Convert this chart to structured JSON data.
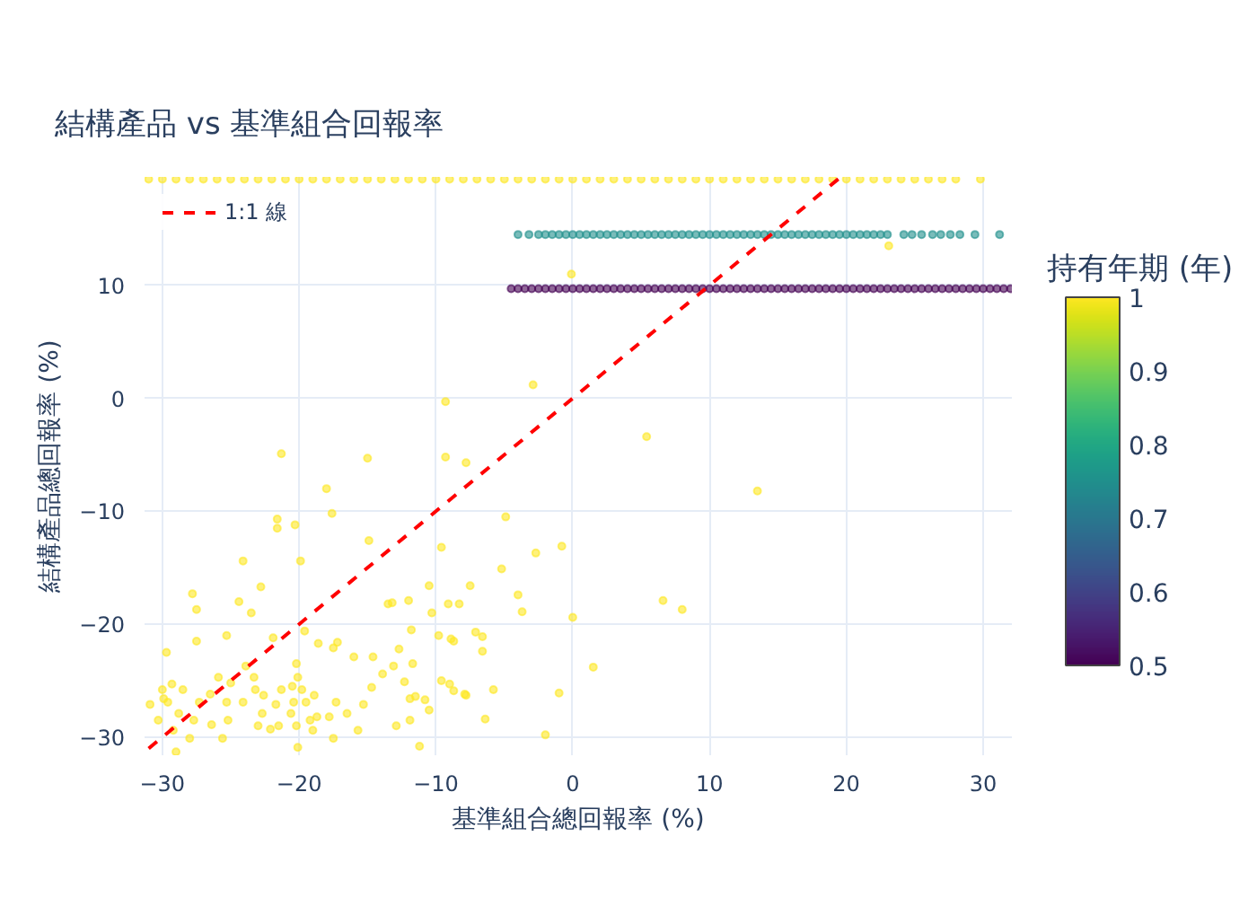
{
  "chart_data": {
    "type": "scatter",
    "title": "結構產品 vs 基準組合回報率",
    "xlabel": "基準組合總回報率 (%)",
    "ylabel": "結構產品總回報率 (%)",
    "clabel": "持有年期 (年)",
    "clim": [
      0.5,
      1
    ],
    "cticks": [
      0.5,
      0.6,
      0.7,
      0.8,
      0.9,
      1
    ],
    "xlim": [
      -31.3,
      32.1
    ],
    "ylim": [
      -31.6,
      19.6
    ],
    "xticks": [
      {
        "value": -30,
        "label": "−30"
      },
      {
        "value": -20,
        "label": "−20"
      },
      {
        "value": -10,
        "label": "−10"
      },
      0,
      10,
      20,
      30
    ],
    "yticks": [
      {
        "value": -30,
        "label": "−30"
      },
      {
        "value": -20,
        "label": "−20"
      },
      {
        "value": -10,
        "label": "−10"
      },
      0,
      10
    ],
    "grid": true,
    "legend": "top left",
    "marker": "circle",
    "series": [
      {
        "x": [
          -21.3,
          -15.0,
          -9.3,
          -9.3,
          -7.8,
          -2.9,
          -18.0,
          -17.6,
          -21.6,
          -21.6,
          -20.3,
          -14.9,
          -24.1,
          -19.9,
          -9.6,
          -4.9,
          -2.7,
          -0.8,
          -5.2,
          -10.5,
          -7.5,
          -22.8,
          -27.8,
          -27.5,
          -24.4,
          -23.5,
          -13.5,
          -13.2,
          -12.0,
          -10.3,
          -9.1,
          -8.3,
          -4.0,
          -3.7,
          0.0,
          -11.8,
          -19.6,
          -21.9,
          -25.3,
          -27.5,
          -29.7,
          -18.6,
          -17.2,
          -17.5,
          -16.0,
          -14.6,
          -13.1,
          -12.7,
          -11.7,
          -9.8,
          -8.9,
          -8.7,
          -7.1,
          -6.6,
          -6.6,
          -5.8,
          -1.0,
          -6.4,
          -2.0,
          -9.6,
          -9.0,
          -7.8,
          -8.7,
          -11.5,
          -10.8,
          -10.5,
          -12.3,
          -11.9,
          -11.9,
          -12.9,
          -11.2,
          -13.9,
          -14.7,
          -15.3,
          -15.7,
          -16.5,
          -17.3,
          -17.8,
          -17.5,
          -18.9,
          -18.7,
          -19.2,
          -19.0,
          -19.5,
          -19.8,
          -20.1,
          -20.2,
          -20.5,
          -20.4,
          -20.6,
          -20.2,
          -20.1,
          -21.3,
          -21.7,
          -21.5,
          -22.1,
          -22.6,
          -22.7,
          -23.0,
          -23.2,
          -23.3,
          -24.1,
          -23.9,
          -25.0,
          -25.3,
          -25.2,
          -25.6,
          -25.9,
          -26.5,
          -26.4,
          -27.3,
          -27.7,
          -28.0,
          -28.5,
          -28.8,
          -29.2,
          -29.6,
          -30.0,
          -30.3,
          -30.9,
          -29.3,
          -29.9,
          -29.0,
          5.4,
          13.5,
          6.6,
          8.0,
          1.5,
          -7.9,
          23.1,
          -0.1
        ],
        "values": [
          -4.9,
          -5.3,
          -0.3,
          -5.2,
          -5.7,
          1.2,
          -8.0,
          -10.2,
          -10.7,
          -11.5,
          -11.2,
          -12.6,
          -14.4,
          -14.4,
          -13.2,
          -10.5,
          -13.7,
          -13.1,
          -15.1,
          -16.6,
          -16.6,
          -16.7,
          -17.3,
          -18.7,
          -18.0,
          -19.0,
          -18.2,
          -18.1,
          -17.9,
          -19.0,
          -18.2,
          -18.2,
          -17.4,
          -18.9,
          -19.4,
          -20.5,
          -20.6,
          -21.2,
          -21.0,
          -21.5,
          -22.5,
          -21.7,
          -21.6,
          -22.1,
          -22.9,
          -22.9,
          -23.7,
          -22.2,
          -23.5,
          -21.0,
          -21.3,
          -21.5,
          -20.7,
          -21.1,
          -22.4,
          -25.8,
          -26.1,
          -28.4,
          -29.8,
          -25.0,
          -25.3,
          -26.3,
          -25.9,
          -26.4,
          -26.7,
          -27.6,
          -25.1,
          -26.6,
          -28.5,
          -29.0,
          -30.8,
          -24.4,
          -25.6,
          -27.1,
          -29.4,
          -27.9,
          -26.9,
          -28.2,
          -30.1,
          -26.3,
          -28.2,
          -28.5,
          -29.4,
          -26.9,
          -25.8,
          -24.7,
          -23.5,
          -25.5,
          -26.9,
          -27.9,
          -29.0,
          -30.9,
          -25.8,
          -27.1,
          -29.0,
          -29.3,
          -26.3,
          -27.9,
          -29.0,
          -25.8,
          -24.7,
          -26.9,
          -23.7,
          -25.2,
          -26.9,
          -28.5,
          -30.1,
          -24.7,
          -26.2,
          -28.9,
          -26.9,
          -28.5,
          -30.1,
          -25.8,
          -27.9,
          -29.4,
          -26.9,
          -25.8,
          -28.5,
          -27.1,
          -25.3,
          -26.6,
          -31.3,
          -3.4,
          -8.2,
          -17.9,
          -18.7,
          -23.8,
          -26.2,
          13.5,
          11.0
        ],
        "cvalues": [
          1,
          1,
          1,
          1,
          1,
          1,
          1,
          1,
          1,
          1,
          1,
          1,
          1,
          1,
          1,
          1,
          1,
          1,
          1,
          1,
          1,
          1,
          1,
          1,
          1,
          1,
          1,
          1,
          1,
          1,
          1,
          1,
          1,
          1,
          1,
          1,
          1,
          1,
          1,
          1,
          1,
          1,
          1,
          1,
          1,
          1,
          1,
          1,
          1,
          1,
          1,
          1,
          1,
          1,
          1,
          1,
          1,
          1,
          1,
          1,
          1,
          1,
          1,
          1,
          1,
          1,
          1,
          1,
          1,
          1,
          1,
          1,
          1,
          1,
          1,
          1,
          1,
          1,
          1,
          1,
          1,
          1,
          1,
          1,
          1,
          1,
          1,
          1,
          1,
          1,
          1,
          1,
          1,
          1,
          1,
          1,
          1,
          1,
          1,
          1,
          1,
          1,
          1,
          1,
          1,
          1,
          1,
          1,
          1,
          1,
          1,
          1,
          1,
          1,
          1,
          1,
          1,
          1,
          1,
          1,
          1,
          1,
          1,
          1,
          1,
          1,
          1,
          1,
          1,
          1,
          1
        ]
      },
      {
        "x": [
          -4.5,
          -4,
          -3.5,
          -3,
          -2.5,
          -2,
          -1.5,
          -1,
          -0.5,
          0,
          0.5,
          1,
          1.5,
          2,
          2.5,
          3,
          3.5,
          4,
          4.5,
          5,
          5.5,
          6,
          6.5,
          7,
          7.5,
          8,
          8.5,
          9,
          9.5,
          10,
          10.5,
          11,
          11.5,
          12,
          12.5,
          13,
          13.5,
          14,
          14.5,
          15,
          15.5,
          16,
          16.5,
          17,
          17.5,
          18,
          18.5,
          19,
          19.5,
          20,
          20.5,
          21,
          21.5,
          22,
          22.5,
          23,
          23.5,
          24,
          24.5,
          25,
          25.5,
          26,
          26.5,
          27,
          27.5,
          28,
          28.5,
          29,
          29.5,
          30,
          30.5,
          31,
          31.5,
          32
        ],
        "values": [
          9.7,
          9.7,
          9.7,
          9.7,
          9.7,
          9.7,
          9.7,
          9.7,
          9.7,
          9.7,
          9.7,
          9.7,
          9.7,
          9.7,
          9.7,
          9.7,
          9.7,
          9.7,
          9.7,
          9.7,
          9.7,
          9.7,
          9.7,
          9.7,
          9.7,
          9.7,
          9.7,
          9.7,
          9.7,
          9.7,
          9.7,
          9.7,
          9.7,
          9.7,
          9.7,
          9.7,
          9.7,
          9.7,
          9.7,
          9.7,
          9.7,
          9.7,
          9.7,
          9.7,
          9.7,
          9.7,
          9.7,
          9.7,
          9.7,
          9.7,
          9.7,
          9.7,
          9.7,
          9.7,
          9.7,
          9.7,
          9.7,
          9.7,
          9.7,
          9.7,
          9.7,
          9.7,
          9.7,
          9.7,
          9.7,
          9.7,
          9.7,
          9.7,
          9.7,
          9.7,
          9.7,
          9.7,
          9.7,
          9.7
        ],
        "cvalues": [
          0.5,
          0.5,
          0.5,
          0.5,
          0.5,
          0.5,
          0.5,
          0.5,
          0.5,
          0.5,
          0.5,
          0.5,
          0.5,
          0.5,
          0.5,
          0.5,
          0.5,
          0.5,
          0.5,
          0.5,
          0.5,
          0.5,
          0.5,
          0.5,
          0.5,
          0.5,
          0.5,
          0.5,
          0.5,
          0.5,
          0.5,
          0.5,
          0.5,
          0.5,
          0.5,
          0.5,
          0.5,
          0.5,
          0.5,
          0.5,
          0.5,
          0.5,
          0.5,
          0.5,
          0.5,
          0.5,
          0.5,
          0.5,
          0.5,
          0.5,
          0.5,
          0.5,
          0.5,
          0.5,
          0.5,
          0.5,
          0.5,
          0.5,
          0.5,
          0.5,
          0.5,
          0.5,
          0.5,
          0.5,
          0.5,
          0.5,
          0.5,
          0.5,
          0.5,
          0.5,
          0.5,
          0.5,
          0.5,
          0.5
        ]
      },
      {
        "x": [
          -4,
          -3.2,
          -2.5,
          -2,
          -1.5,
          -1,
          -0.5,
          0,
          0.5,
          1,
          1.5,
          2,
          2.5,
          3,
          3.5,
          4,
          4.5,
          5,
          5.5,
          6,
          6.5,
          7,
          7.5,
          8,
          8.5,
          9,
          9.5,
          10,
          10.5,
          11,
          11.5,
          12,
          12.5,
          13,
          13.5,
          14,
          14.5,
          15,
          15.5,
          16,
          16.5,
          17,
          17.5,
          18,
          18.5,
          19,
          19.5,
          20,
          20.5,
          21,
          21.5,
          22,
          22.5,
          23,
          24.2,
          24.8,
          25.5,
          26.3,
          26.9,
          27.6,
          28.3,
          29.4,
          31.2
        ],
        "values": [
          14.5,
          14.5,
          14.5,
          14.5,
          14.5,
          14.5,
          14.5,
          14.5,
          14.5,
          14.5,
          14.5,
          14.5,
          14.5,
          14.5,
          14.5,
          14.5,
          14.5,
          14.5,
          14.5,
          14.5,
          14.5,
          14.5,
          14.5,
          14.5,
          14.5,
          14.5,
          14.5,
          14.5,
          14.5,
          14.5,
          14.5,
          14.5,
          14.5,
          14.5,
          14.5,
          14.5,
          14.5,
          14.5,
          14.5,
          14.5,
          14.5,
          14.5,
          14.5,
          14.5,
          14.5,
          14.5,
          14.5,
          14.5,
          14.5,
          14.5,
          14.5,
          14.5,
          14.5,
          14.5,
          14.5,
          14.5,
          14.5,
          14.5,
          14.5,
          14.5,
          14.5,
          14.5,
          14.5
        ],
        "cvalues": [
          0.75,
          0.75,
          0.75,
          0.75,
          0.75,
          0.75,
          0.75,
          0.75,
          0.75,
          0.75,
          0.75,
          0.75,
          0.75,
          0.75,
          0.75,
          0.75,
          0.75,
          0.75,
          0.75,
          0.75,
          0.75,
          0.75,
          0.75,
          0.75,
          0.75,
          0.75,
          0.75,
          0.75,
          0.75,
          0.75,
          0.75,
          0.75,
          0.75,
          0.75,
          0.75,
          0.75,
          0.75,
          0.75,
          0.75,
          0.75,
          0.75,
          0.75,
          0.75,
          0.75,
          0.75,
          0.75,
          0.75,
          0.75,
          0.75,
          0.75,
          0.75,
          0.75,
          0.75,
          0.75,
          0.75,
          0.75,
          0.75,
          0.75,
          0.75,
          0.75,
          0.75,
          0.75,
          0.75
        ]
      },
      {
        "x": [
          -31,
          -30,
          -29,
          -28,
          -27,
          -26,
          -25,
          -24,
          -23,
          -22,
          -21,
          -20,
          -19,
          -18,
          -17,
          -16,
          -15,
          -14,
          -13,
          -12,
          -11,
          -10,
          -9,
          -8,
          -7,
          -6,
          -5,
          -4,
          -3,
          -2,
          -1,
          0,
          1,
          2,
          3,
          4,
          5,
          6,
          7,
          8,
          9,
          10,
          11,
          12,
          13,
          14,
          15,
          16,
          17,
          18,
          19,
          20,
          21,
          22,
          23,
          24,
          25,
          26,
          27,
          28,
          29.8
        ],
        "values": [
          19.4,
          19.4,
          19.4,
          19.4,
          19.4,
          19.4,
          19.4,
          19.4,
          19.4,
          19.4,
          19.4,
          19.4,
          19.4,
          19.4,
          19.4,
          19.4,
          19.4,
          19.4,
          19.4,
          19.4,
          19.4,
          19.4,
          19.4,
          19.4,
          19.4,
          19.4,
          19.4,
          19.4,
          19.4,
          19.4,
          19.4,
          19.4,
          19.4,
          19.4,
          19.4,
          19.4,
          19.4,
          19.4,
          19.4,
          19.4,
          19.4,
          19.4,
          19.4,
          19.4,
          19.4,
          19.4,
          19.4,
          19.4,
          19.4,
          19.4,
          19.4,
          19.4,
          19.4,
          19.4,
          19.4,
          19.4,
          19.4,
          19.4,
          19.4,
          19.4,
          19.4
        ],
        "cvalues": [
          1,
          1,
          1,
          1,
          1,
          1,
          1,
          1,
          1,
          1,
          1,
          1,
          1,
          1,
          1,
          1,
          1,
          1,
          1,
          1,
          1,
          1,
          1,
          1,
          1,
          1,
          1,
          1,
          1,
          1,
          1,
          1,
          1,
          1,
          1,
          1,
          1,
          1,
          1,
          1,
          1,
          1,
          1,
          1,
          1,
          1,
          1,
          1,
          1,
          1,
          1,
          1,
          1,
          1,
          1,
          1,
          1,
          1,
          1,
          1,
          1
        ]
      },
      {
        "type": "line",
        "name": "1:1 線",
        "color": "#ff0000",
        "line_style": "dashed",
        "marker": "none",
        "x": [
          -31,
          19.5
        ],
        "values": [
          -31,
          19.5
        ]
      }
    ]
  }
}
